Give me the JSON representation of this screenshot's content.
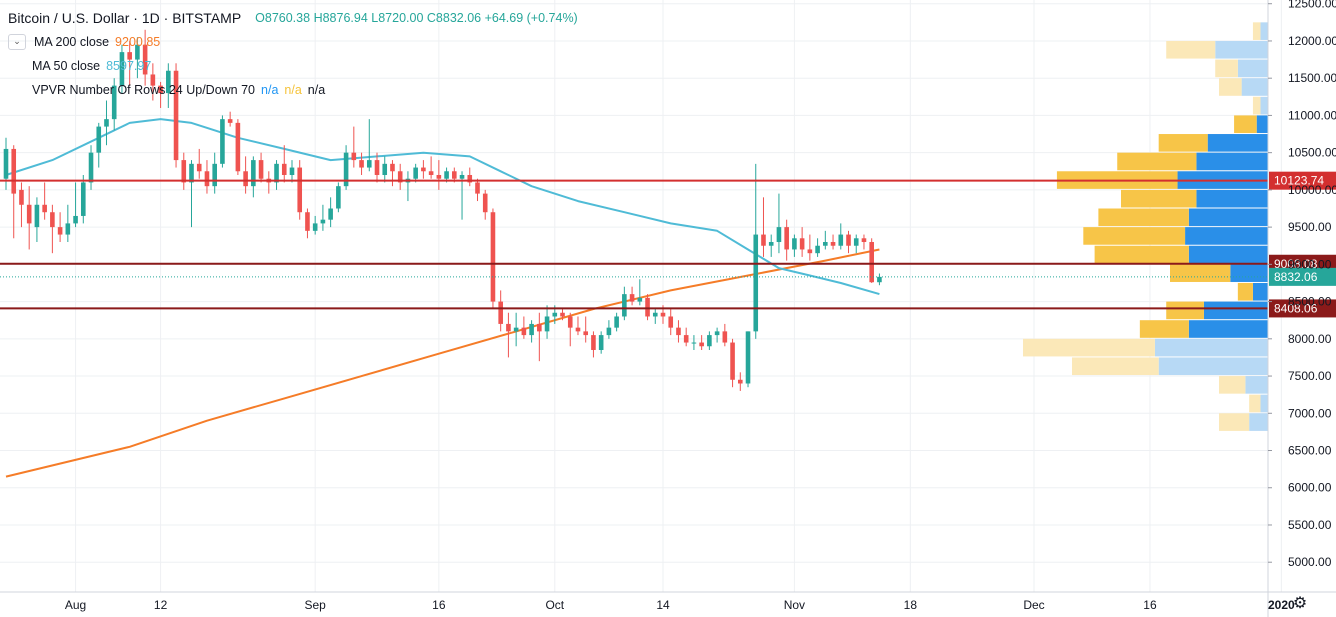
{
  "header": {
    "symbol": "Bitcoin / U.S. Dollar",
    "interval": "1D",
    "exchange": "BITSTAMP",
    "open": "O8760.38",
    "high": "H8876.94",
    "low": "L8720.00",
    "close": "C8832.06",
    "change": "+64.69 (+0.74%)"
  },
  "indicators": [
    {
      "label": "MA 200 close",
      "value": "9200.85",
      "color": "#f57c28"
    },
    {
      "label": "MA 50 close",
      "value": "8597.97",
      "color": "#4fbbd6"
    },
    {
      "label": "VPVR Number Of Rows 24 Up/Down 70",
      "values": [
        "n/a",
        "n/a",
        "n/a"
      ]
    }
  ],
  "colors": {
    "up": "#26a69a",
    "down": "#ef5350",
    "ma200": "#f57c28",
    "ma50": "#4fbbd6",
    "vp_up": "#2a8fe8",
    "vp_down": "#f7c548",
    "vp_up_light": "#b7d9f5",
    "vp_down_light": "#fbe8b8",
    "hline_red": "#d32f2f",
    "hline_dark": "#8b1a1a",
    "last_price": "#26a69a"
  },
  "chart_data": {
    "type": "candlestick",
    "ylim": [
      4600,
      12550
    ],
    "y_ticks": [
      "12500.00",
      "12000.00",
      "11500.00",
      "11000.00",
      "10500.00",
      "10000.00",
      "9500.00",
      "9000.00",
      "8500.00",
      "8000.00",
      "7500.00",
      "7000.00",
      "6500.00",
      "6000.00",
      "5500.00",
      "5000.00"
    ],
    "x_ticks": [
      "Aug",
      "12",
      "Sep",
      "16",
      "Oct",
      "14",
      "Nov",
      "18",
      "Dec",
      "16",
      "2020"
    ],
    "x_tick_days": [
      -7,
      4,
      24,
      40,
      55,
      69,
      86,
      101,
      117,
      132,
      149
    ],
    "x_range_days": [
      -16,
      154
    ],
    "candles": [
      {
        "d": -16,
        "o": 10150,
        "h": 10700,
        "l": 10000,
        "c": 10550
      },
      {
        "d": -15,
        "o": 10550,
        "h": 10600,
        "l": 9350,
        "c": 9950
      },
      {
        "d": -14,
        "o": 10000,
        "h": 10100,
        "l": 9500,
        "c": 9800
      },
      {
        "d": -13,
        "o": 9800,
        "h": 10050,
        "l": 9200,
        "c": 9550
      },
      {
        "d": -12,
        "o": 9500,
        "h": 9900,
        "l": 9300,
        "c": 9800
      },
      {
        "d": -11,
        "o": 9800,
        "h": 10100,
        "l": 9600,
        "c": 9700
      },
      {
        "d": -10,
        "o": 9700,
        "h": 9800,
        "l": 9150,
        "c": 9500
      },
      {
        "d": -9,
        "o": 9500,
        "h": 9700,
        "l": 9300,
        "c": 9400
      },
      {
        "d": -8,
        "o": 9400,
        "h": 9800,
        "l": 9300,
        "c": 9550
      },
      {
        "d": -7,
        "o": 9550,
        "h": 10100,
        "l": 9500,
        "c": 9650
      },
      {
        "d": -6,
        "o": 9650,
        "h": 10200,
        "l": 9550,
        "c": 10100
      },
      {
        "d": -5,
        "o": 10100,
        "h": 10600,
        "l": 10000,
        "c": 10500
      },
      {
        "d": -4,
        "o": 10500,
        "h": 10900,
        "l": 10300,
        "c": 10850
      },
      {
        "d": -3,
        "o": 10850,
        "h": 11200,
        "l": 10600,
        "c": 10950
      },
      {
        "d": -2,
        "o": 10950,
        "h": 11500,
        "l": 10800,
        "c": 11400
      },
      {
        "d": -1,
        "o": 11400,
        "h": 11950,
        "l": 11300,
        "c": 11850
      },
      {
        "d": 0,
        "o": 11850,
        "h": 12000,
        "l": 11400,
        "c": 11750
      },
      {
        "d": 1,
        "o": 11750,
        "h": 12050,
        "l": 11500,
        "c": 11950
      },
      {
        "d": 2,
        "o": 11950,
        "h": 12150,
        "l": 11400,
        "c": 11550
      },
      {
        "d": 3,
        "o": 11550,
        "h": 11700,
        "l": 11200,
        "c": 11400
      },
      {
        "d": 4,
        "o": 11400,
        "h": 11450,
        "l": 11100,
        "c": 11300
      },
      {
        "d": 5,
        "o": 11300,
        "h": 11700,
        "l": 11100,
        "c": 11600
      },
      {
        "d": 6,
        "o": 11600,
        "h": 11700,
        "l": 10300,
        "c": 10400
      },
      {
        "d": 7,
        "o": 10400,
        "h": 10500,
        "l": 10000,
        "c": 10100
      },
      {
        "d": 8,
        "o": 10100,
        "h": 10400,
        "l": 9500,
        "c": 10350
      },
      {
        "d": 9,
        "o": 10350,
        "h": 10550,
        "l": 10150,
        "c": 10250
      },
      {
        "d": 10,
        "o": 10250,
        "h": 10400,
        "l": 9950,
        "c": 10050
      },
      {
        "d": 11,
        "o": 10050,
        "h": 10500,
        "l": 9950,
        "c": 10350
      },
      {
        "d": 12,
        "o": 10350,
        "h": 11000,
        "l": 10300,
        "c": 10950
      },
      {
        "d": 13,
        "o": 10950,
        "h": 11050,
        "l": 10850,
        "c": 10900
      },
      {
        "d": 14,
        "o": 10900,
        "h": 10950,
        "l": 10200,
        "c": 10250
      },
      {
        "d": 15,
        "o": 10250,
        "h": 10450,
        "l": 9950,
        "c": 10050
      },
      {
        "d": 16,
        "o": 10050,
        "h": 10450,
        "l": 9900,
        "c": 10400
      },
      {
        "d": 17,
        "o": 10400,
        "h": 10500,
        "l": 10100,
        "c": 10150
      },
      {
        "d": 18,
        "o": 10150,
        "h": 10250,
        "l": 9950,
        "c": 10100
      },
      {
        "d": 19,
        "o": 10100,
        "h": 10400,
        "l": 10000,
        "c": 10350
      },
      {
        "d": 20,
        "o": 10350,
        "h": 10600,
        "l": 10100,
        "c": 10200
      },
      {
        "d": 21,
        "o": 10200,
        "h": 10400,
        "l": 10100,
        "c": 10300
      },
      {
        "d": 22,
        "o": 10300,
        "h": 10400,
        "l": 9600,
        "c": 9700
      },
      {
        "d": 23,
        "o": 9700,
        "h": 9750,
        "l": 9350,
        "c": 9450
      },
      {
        "d": 24,
        "o": 9450,
        "h": 9650,
        "l": 9400,
        "c": 9550
      },
      {
        "d": 25,
        "o": 9550,
        "h": 9800,
        "l": 9450,
        "c": 9600
      },
      {
        "d": 26,
        "o": 9600,
        "h": 9900,
        "l": 9500,
        "c": 9750
      },
      {
        "d": 27,
        "o": 9750,
        "h": 10100,
        "l": 9700,
        "c": 10050
      },
      {
        "d": 28,
        "o": 10050,
        "h": 10600,
        "l": 10000,
        "c": 10500
      },
      {
        "d": 29,
        "o": 10500,
        "h": 10850,
        "l": 10300,
        "c": 10400
      },
      {
        "d": 30,
        "o": 10400,
        "h": 10500,
        "l": 10200,
        "c": 10300
      },
      {
        "d": 31,
        "o": 10300,
        "h": 10950,
        "l": 10250,
        "c": 10400
      },
      {
        "d": 32,
        "o": 10400,
        "h": 10500,
        "l": 10100,
        "c": 10200
      },
      {
        "d": 33,
        "o": 10200,
        "h": 10450,
        "l": 10100,
        "c": 10350
      },
      {
        "d": 34,
        "o": 10350,
        "h": 10400,
        "l": 10050,
        "c": 10250
      },
      {
        "d": 35,
        "o": 10250,
        "h": 10350,
        "l": 10000,
        "c": 10100
      },
      {
        "d": 36,
        "o": 10100,
        "h": 10250,
        "l": 9850,
        "c": 10150
      },
      {
        "d": 37,
        "o": 10150,
        "h": 10350,
        "l": 10100,
        "c": 10300
      },
      {
        "d": 38,
        "o": 10300,
        "h": 10400,
        "l": 10150,
        "c": 10250
      },
      {
        "d": 39,
        "o": 10250,
        "h": 10450,
        "l": 10150,
        "c": 10200
      },
      {
        "d": 40,
        "o": 10200,
        "h": 10400,
        "l": 10000,
        "c": 10150
      },
      {
        "d": 41,
        "o": 10150,
        "h": 10300,
        "l": 10100,
        "c": 10250
      },
      {
        "d": 42,
        "o": 10250,
        "h": 10300,
        "l": 10100,
        "c": 10150
      },
      {
        "d": 43,
        "o": 10150,
        "h": 10250,
        "l": 9600,
        "c": 10200
      },
      {
        "d": 44,
        "o": 10200,
        "h": 10300,
        "l": 10050,
        "c": 10100
      },
      {
        "d": 45,
        "o": 10100,
        "h": 10150,
        "l": 9850,
        "c": 9950
      },
      {
        "d": 46,
        "o": 9950,
        "h": 10000,
        "l": 9600,
        "c": 9700
      },
      {
        "d": 47,
        "o": 9700,
        "h": 9750,
        "l": 8400,
        "c": 8500
      },
      {
        "d": 48,
        "o": 8500,
        "h": 8650,
        "l": 8100,
        "c": 8200
      },
      {
        "d": 49,
        "o": 8200,
        "h": 8350,
        "l": 7750,
        "c": 8100
      },
      {
        "d": 50,
        "o": 8100,
        "h": 8350,
        "l": 7900,
        "c": 8150
      },
      {
        "d": 51,
        "o": 8150,
        "h": 8300,
        "l": 8000,
        "c": 8050
      },
      {
        "d": 52,
        "o": 8050,
        "h": 8250,
        "l": 7950,
        "c": 8200
      },
      {
        "d": 53,
        "o": 8200,
        "h": 8350,
        "l": 7700,
        "c": 8100
      },
      {
        "d": 54,
        "o": 8100,
        "h": 8450,
        "l": 8000,
        "c": 8300
      },
      {
        "d": 55,
        "o": 8300,
        "h": 8450,
        "l": 8200,
        "c": 8350
      },
      {
        "d": 56,
        "o": 8350,
        "h": 8400,
        "l": 8250,
        "c": 8300
      },
      {
        "d": 57,
        "o": 8300,
        "h": 8350,
        "l": 7900,
        "c": 8150
      },
      {
        "d": 58,
        "o": 8150,
        "h": 8300,
        "l": 8050,
        "c": 8100
      },
      {
        "d": 59,
        "o": 8100,
        "h": 8300,
        "l": 7950,
        "c": 8050
      },
      {
        "d": 60,
        "o": 8050,
        "h": 8100,
        "l": 7750,
        "c": 7850
      },
      {
        "d": 61,
        "o": 7850,
        "h": 8100,
        "l": 7800,
        "c": 8050
      },
      {
        "d": 62,
        "o": 8050,
        "h": 8250,
        "l": 8000,
        "c": 8150
      },
      {
        "d": 63,
        "o": 8150,
        "h": 8350,
        "l": 8100,
        "c": 8300
      },
      {
        "d": 64,
        "o": 8300,
        "h": 8700,
        "l": 8250,
        "c": 8600
      },
      {
        "d": 65,
        "o": 8600,
        "h": 8700,
        "l": 8450,
        "c": 8500
      },
      {
        "d": 66,
        "o": 8500,
        "h": 8800,
        "l": 8450,
        "c": 8550
      },
      {
        "d": 67,
        "o": 8550,
        "h": 8600,
        "l": 8250,
        "c": 8300
      },
      {
        "d": 68,
        "o": 8300,
        "h": 8400,
        "l": 8200,
        "c": 8350
      },
      {
        "d": 69,
        "o": 8350,
        "h": 8450,
        "l": 8200,
        "c": 8300
      },
      {
        "d": 70,
        "o": 8300,
        "h": 8400,
        "l": 8050,
        "c": 8150
      },
      {
        "d": 71,
        "o": 8150,
        "h": 8250,
        "l": 7950,
        "c": 8050
      },
      {
        "d": 72,
        "o": 8050,
        "h": 8150,
        "l": 7900,
        "c": 7950
      },
      {
        "d": 73,
        "o": 7950,
        "h": 8050,
        "l": 7850,
        "c": 7950
      },
      {
        "d": 74,
        "o": 7950,
        "h": 8050,
        "l": 7850,
        "c": 7900
      },
      {
        "d": 75,
        "o": 7900,
        "h": 8100,
        "l": 7850,
        "c": 8050
      },
      {
        "d": 76,
        "o": 8050,
        "h": 8150,
        "l": 7950,
        "c": 8100
      },
      {
        "d": 77,
        "o": 8100,
        "h": 8200,
        "l": 7900,
        "c": 7950
      },
      {
        "d": 78,
        "o": 7950,
        "h": 8000,
        "l": 7350,
        "c": 7450
      },
      {
        "d": 79,
        "o": 7450,
        "h": 7550,
        "l": 7300,
        "c": 7400
      },
      {
        "d": 80,
        "o": 7400,
        "h": 8100,
        "l": 7350,
        "c": 8100
      },
      {
        "d": 81,
        "o": 8100,
        "h": 10350,
        "l": 8000,
        "c": 9400
      },
      {
        "d": 82,
        "o": 9400,
        "h": 9900,
        "l": 9100,
        "c": 9250
      },
      {
        "d": 83,
        "o": 9250,
        "h": 9400,
        "l": 9100,
        "c": 9300
      },
      {
        "d": 84,
        "o": 9300,
        "h": 9950,
        "l": 9150,
        "c": 9500
      },
      {
        "d": 85,
        "o": 9500,
        "h": 9600,
        "l": 9050,
        "c": 9200
      },
      {
        "d": 86,
        "o": 9200,
        "h": 9400,
        "l": 9100,
        "c": 9350
      },
      {
        "d": 87,
        "o": 9350,
        "h": 9500,
        "l": 9100,
        "c": 9200
      },
      {
        "d": 88,
        "o": 9200,
        "h": 9400,
        "l": 9050,
        "c": 9150
      },
      {
        "d": 89,
        "o": 9150,
        "h": 9350,
        "l": 9100,
        "c": 9250
      },
      {
        "d": 90,
        "o": 9250,
        "h": 9450,
        "l": 9200,
        "c": 9300
      },
      {
        "d": 91,
        "o": 9300,
        "h": 9400,
        "l": 9200,
        "c": 9250
      },
      {
        "d": 92,
        "o": 9250,
        "h": 9550,
        "l": 9200,
        "c": 9400
      },
      {
        "d": 93,
        "o": 9400,
        "h": 9450,
        "l": 9150,
        "c": 9250
      },
      {
        "d": 94,
        "o": 9250,
        "h": 9400,
        "l": 9150,
        "c": 9350
      },
      {
        "d": 95,
        "o": 9350,
        "h": 9400,
        "l": 9200,
        "c": 9300
      },
      {
        "d": 96,
        "o": 9300,
        "h": 9350,
        "l": 8750,
        "c": 8760
      },
      {
        "d": 97,
        "o": 8760,
        "h": 8877,
        "l": 8720,
        "c": 8832
      }
    ],
    "ma200": [
      [
        -16,
        6150
      ],
      [
        0,
        6550
      ],
      [
        10,
        6900
      ],
      [
        20,
        7200
      ],
      [
        30,
        7500
      ],
      [
        40,
        7800
      ],
      [
        50,
        8100
      ],
      [
        60,
        8400
      ],
      [
        70,
        8650
      ],
      [
        80,
        8850
      ],
      [
        90,
        9050
      ],
      [
        97,
        9200
      ]
    ],
    "ma50": [
      [
        -16,
        10200
      ],
      [
        -10,
        10400
      ],
      [
        -4,
        10700
      ],
      [
        0,
        10900
      ],
      [
        4,
        10950
      ],
      [
        8,
        10900
      ],
      [
        14,
        10700
      ],
      [
        20,
        10550
      ],
      [
        26,
        10400
      ],
      [
        32,
        10450
      ],
      [
        38,
        10500
      ],
      [
        44,
        10450
      ],
      [
        48,
        10250
      ],
      [
        52,
        10050
      ],
      [
        58,
        9850
      ],
      [
        64,
        9700
      ],
      [
        70,
        9550
      ],
      [
        76,
        9450
      ],
      [
        80,
        9200
      ],
      [
        84,
        8950
      ],
      [
        88,
        8850
      ],
      [
        92,
        8750
      ],
      [
        97,
        8600
      ]
    ],
    "vpvr": [
      {
        "lo": 12000,
        "hi": 12250,
        "up": 100,
        "down": 100,
        "faded": true
      },
      {
        "lo": 11750,
        "hi": 12000,
        "up": 700,
        "down": 650,
        "faded": true
      },
      {
        "lo": 11500,
        "hi": 11750,
        "up": 400,
        "down": 300,
        "faded": true
      },
      {
        "lo": 11250,
        "hi": 11500,
        "up": 350,
        "down": 300,
        "faded": true
      },
      {
        "lo": 11000,
        "hi": 11250,
        "up": 100,
        "down": 100,
        "faded": true
      },
      {
        "lo": 10750,
        "hi": 11000,
        "up": 150,
        "down": 300,
        "faded": false
      },
      {
        "lo": 10500,
        "hi": 10750,
        "up": 800,
        "down": 650,
        "faded": false
      },
      {
        "lo": 10250,
        "hi": 10500,
        "up": 950,
        "down": 1050,
        "faded": false
      },
      {
        "lo": 10000,
        "hi": 10250,
        "up": 1200,
        "down": 1600,
        "faded": false
      },
      {
        "lo": 9750,
        "hi": 10000,
        "up": 950,
        "down": 1000,
        "faded": false
      },
      {
        "lo": 9500,
        "hi": 9750,
        "up": 1050,
        "down": 1200,
        "faded": false
      },
      {
        "lo": 9250,
        "hi": 9500,
        "up": 1100,
        "down": 1350,
        "faded": false
      },
      {
        "lo": 9000,
        "hi": 9250,
        "up": 1050,
        "down": 1250,
        "faded": false
      },
      {
        "lo": 8750,
        "hi": 9000,
        "up": 500,
        "down": 800,
        "faded": false
      },
      {
        "lo": 8500,
        "hi": 8750,
        "up": 200,
        "down": 200,
        "faded": false
      },
      {
        "lo": 8250,
        "hi": 8500,
        "up": 850,
        "down": 500,
        "faded": false
      },
      {
        "lo": 8000,
        "hi": 8250,
        "up": 1050,
        "down": 650,
        "faded": false
      },
      {
        "lo": 7750,
        "hi": 8000,
        "up": 1500,
        "down": 1750,
        "faded": true
      },
      {
        "lo": 7500,
        "hi": 7750,
        "up": 1450,
        "down": 1150,
        "faded": true
      },
      {
        "lo": 7250,
        "hi": 7500,
        "up": 300,
        "down": 350,
        "faded": true
      },
      {
        "lo": 7000,
        "hi": 7250,
        "up": 100,
        "down": 150,
        "faded": true
      },
      {
        "lo": 6750,
        "hi": 7000,
        "up": 250,
        "down": 400,
        "faded": true
      }
    ],
    "hlines": [
      {
        "value": 10123.74,
        "label": "10123.74",
        "color": "#d32f2f",
        "style": "solid"
      },
      {
        "value": 9008.08,
        "label": "9008.08",
        "color": "#8b1a1a",
        "style": "solid"
      },
      {
        "value": 8408.06,
        "label": "8408.06",
        "color": "#8b1a1a",
        "style": "solid"
      },
      {
        "value": 8832.06,
        "label": "8832.06",
        "color": "#26a69a",
        "style": "dotted"
      }
    ]
  }
}
